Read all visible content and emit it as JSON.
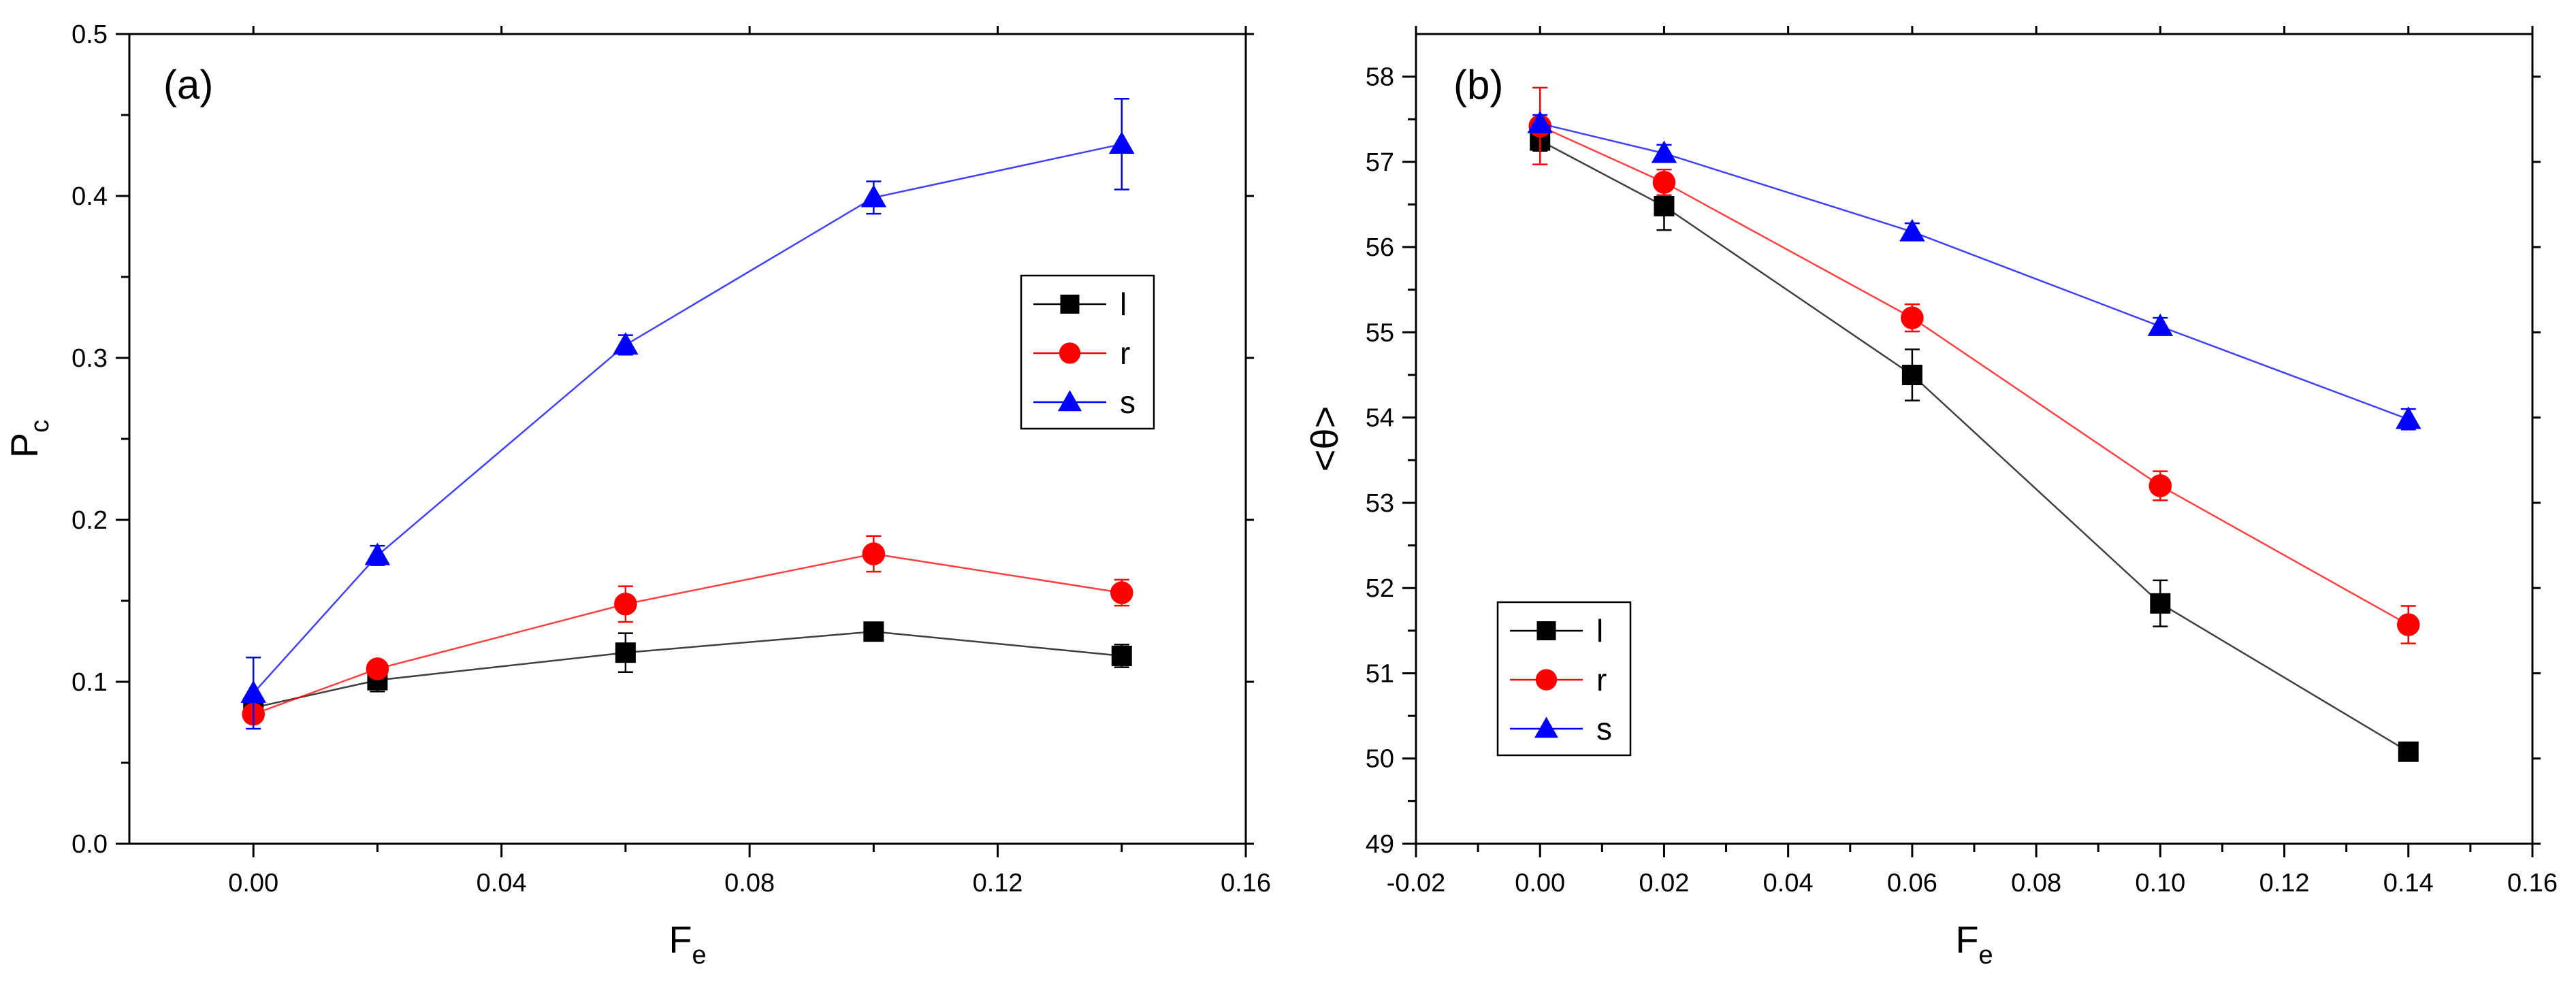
{
  "chart_data": [
    {
      "type": "line",
      "panel_label": "(a)",
      "xlabel": "F",
      "xlabel_sub": "e",
      "ylabel": "P",
      "ylabel_sub": "c",
      "xlim": [
        -0.02,
        0.16
      ],
      "ylim": [
        0.0,
        0.5
      ],
      "x_ticks": [
        0.0,
        0.04,
        0.08,
        0.12,
        0.16
      ],
      "x_tick_labels": [
        "0.00",
        "0.04",
        "0.08",
        "0.12",
        "0.16"
      ],
      "y_ticks": [
        0.0,
        0.1,
        0.2,
        0.3,
        0.4,
        0.5
      ],
      "y_tick_labels": [
        "0.0",
        "0.1",
        "0.2",
        "0.3",
        "0.4",
        "0.5"
      ],
      "legend_position": "middle-right",
      "grid": false,
      "x": [
        0.0,
        0.02,
        0.06,
        0.1,
        0.14
      ],
      "series": [
        {
          "name": "l",
          "color": "#000000",
          "marker": "square",
          "values": [
            0.084,
            0.101,
            0.118,
            0.131,
            0.116
          ],
          "errors": [
            0.004,
            0.007,
            0.012,
            0.005,
            0.007
          ]
        },
        {
          "name": "r",
          "color": "#ff0000",
          "marker": "circle",
          "values": [
            0.08,
            0.108,
            0.148,
            0.179,
            0.155
          ],
          "errors": [
            0.004,
            0.004,
            0.011,
            0.011,
            0.008
          ]
        },
        {
          "name": "s",
          "color": "#0000ff",
          "marker": "triangle",
          "values": [
            0.093,
            0.178,
            0.308,
            0.399,
            0.432
          ],
          "errors": [
            0.022,
            0.006,
            0.006,
            0.01,
            0.028
          ]
        }
      ]
    },
    {
      "type": "line",
      "panel_label": "(b)",
      "xlabel": "F",
      "xlabel_sub": "e",
      "ylabel": "<θ>",
      "xlim": [
        -0.02,
        0.16
      ],
      "ylim": [
        49,
        58.5
      ],
      "x_ticks": [
        -0.02,
        0.0,
        0.02,
        0.04,
        0.06,
        0.08,
        0.1,
        0.12,
        0.14,
        0.16
      ],
      "x_tick_labels": [
        "-0.02",
        "0.00",
        "0.02",
        "0.04",
        "0.06",
        "0.08",
        "0.10",
        "0.12",
        "0.14",
        "0.16"
      ],
      "y_ticks": [
        49,
        50,
        51,
        52,
        53,
        54,
        55,
        56,
        57,
        58
      ],
      "y_tick_labels": [
        "49",
        "50",
        "51",
        "52",
        "53",
        "54",
        "55",
        "56",
        "57",
        "58"
      ],
      "legend_position": "bottom-left",
      "grid": false,
      "x": [
        0.0,
        0.02,
        0.06,
        0.1,
        0.14
      ],
      "series": [
        {
          "name": "l",
          "color": "#000000",
          "marker": "square",
          "values": [
            57.25,
            56.48,
            54.5,
            51.82,
            50.08
          ],
          "errors": [
            0.12,
            0.28,
            0.3,
            0.27,
            0.08
          ]
        },
        {
          "name": "r",
          "color": "#ff0000",
          "marker": "circle",
          "values": [
            57.42,
            56.76,
            55.17,
            53.2,
            51.57
          ],
          "errors": [
            0.45,
            0.15,
            0.16,
            0.17,
            0.22
          ]
        },
        {
          "name": "s",
          "color": "#0000ff",
          "marker": "triangle",
          "values": [
            57.45,
            57.1,
            56.18,
            55.07,
            53.98
          ],
          "errors": [
            0.1,
            0.1,
            0.1,
            0.1,
            0.12
          ]
        }
      ]
    }
  ]
}
